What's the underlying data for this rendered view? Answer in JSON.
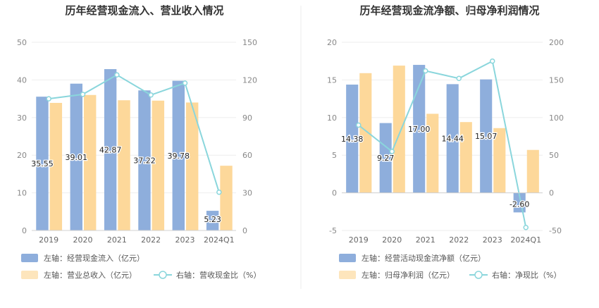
{
  "chart_data": [
    {
      "type": "bar",
      "title": "历年经营现金流入、营业收入情况",
      "categories": [
        "2019",
        "2020",
        "2021",
        "2022",
        "2023",
        "2024Q1"
      ],
      "left_axis": {
        "ylim": [
          0,
          50
        ],
        "ticks": [
          "0",
          "10",
          "20",
          "30",
          "40",
          "50"
        ]
      },
      "right_axis": {
        "ylim": [
          0,
          150
        ],
        "ticks": [
          "0",
          "30",
          "60",
          "90",
          "120",
          "150"
        ]
      },
      "series": [
        {
          "name": "左轴：经营现金流入（亿元）",
          "axis": "left",
          "kind": "bar",
          "color": "#8eaedc",
          "values": [
            35.55,
            39.01,
            42.87,
            37.22,
            39.78,
            5.23
          ],
          "labels": [
            "35.55",
            "39.01",
            "42.87",
            "37.22",
            "39.78",
            "5.23"
          ]
        },
        {
          "name": "左轴：营业总收入（亿元）",
          "axis": "left",
          "kind": "bar",
          "color": "#fdd89a",
          "values": [
            33.9,
            36.0,
            34.6,
            34.5,
            34.0,
            17.2
          ]
        },
        {
          "name": "右轴：营收现金比（%）",
          "axis": "right",
          "kind": "line",
          "color": "#8ad6dc",
          "values": [
            105,
            108.5,
            124,
            108,
            117.5,
            30.5
          ]
        }
      ]
    },
    {
      "type": "bar",
      "title": "历年经营现金流净额、归母净利润情况",
      "categories": [
        "2019",
        "2020",
        "2021",
        "2022",
        "2023",
        "2024Q1"
      ],
      "left_axis": {
        "ylim": [
          -5,
          20
        ],
        "ticks": [
          "-5",
          "0",
          "5",
          "10",
          "15",
          "20"
        ]
      },
      "right_axis": {
        "ylim": [
          -50,
          200
        ],
        "ticks": [
          "-50",
          "0",
          "50",
          "100",
          "150",
          "200"
        ]
      },
      "series": [
        {
          "name": "左轴：经营活动现金流净额（亿元）",
          "axis": "left",
          "kind": "bar",
          "color": "#8eaedc",
          "values": [
            14.38,
            9.27,
            17.0,
            14.44,
            15.07,
            -2.6
          ],
          "labels": [
            "14.38",
            "9.27",
            "17.00",
            "14.44",
            "15.07",
            "-2.60"
          ]
        },
        {
          "name": "左轴：归母净利润（亿元）",
          "axis": "left",
          "kind": "bar",
          "color": "#fdd89a",
          "values": [
            15.9,
            16.9,
            10.5,
            9.4,
            8.6,
            5.7
          ]
        },
        {
          "name": "右轴：净现比（%）",
          "axis": "right",
          "kind": "line",
          "color": "#8ad6dc",
          "values": [
            90,
            55,
            162,
            152,
            175,
            -46
          ]
        }
      ]
    }
  ]
}
